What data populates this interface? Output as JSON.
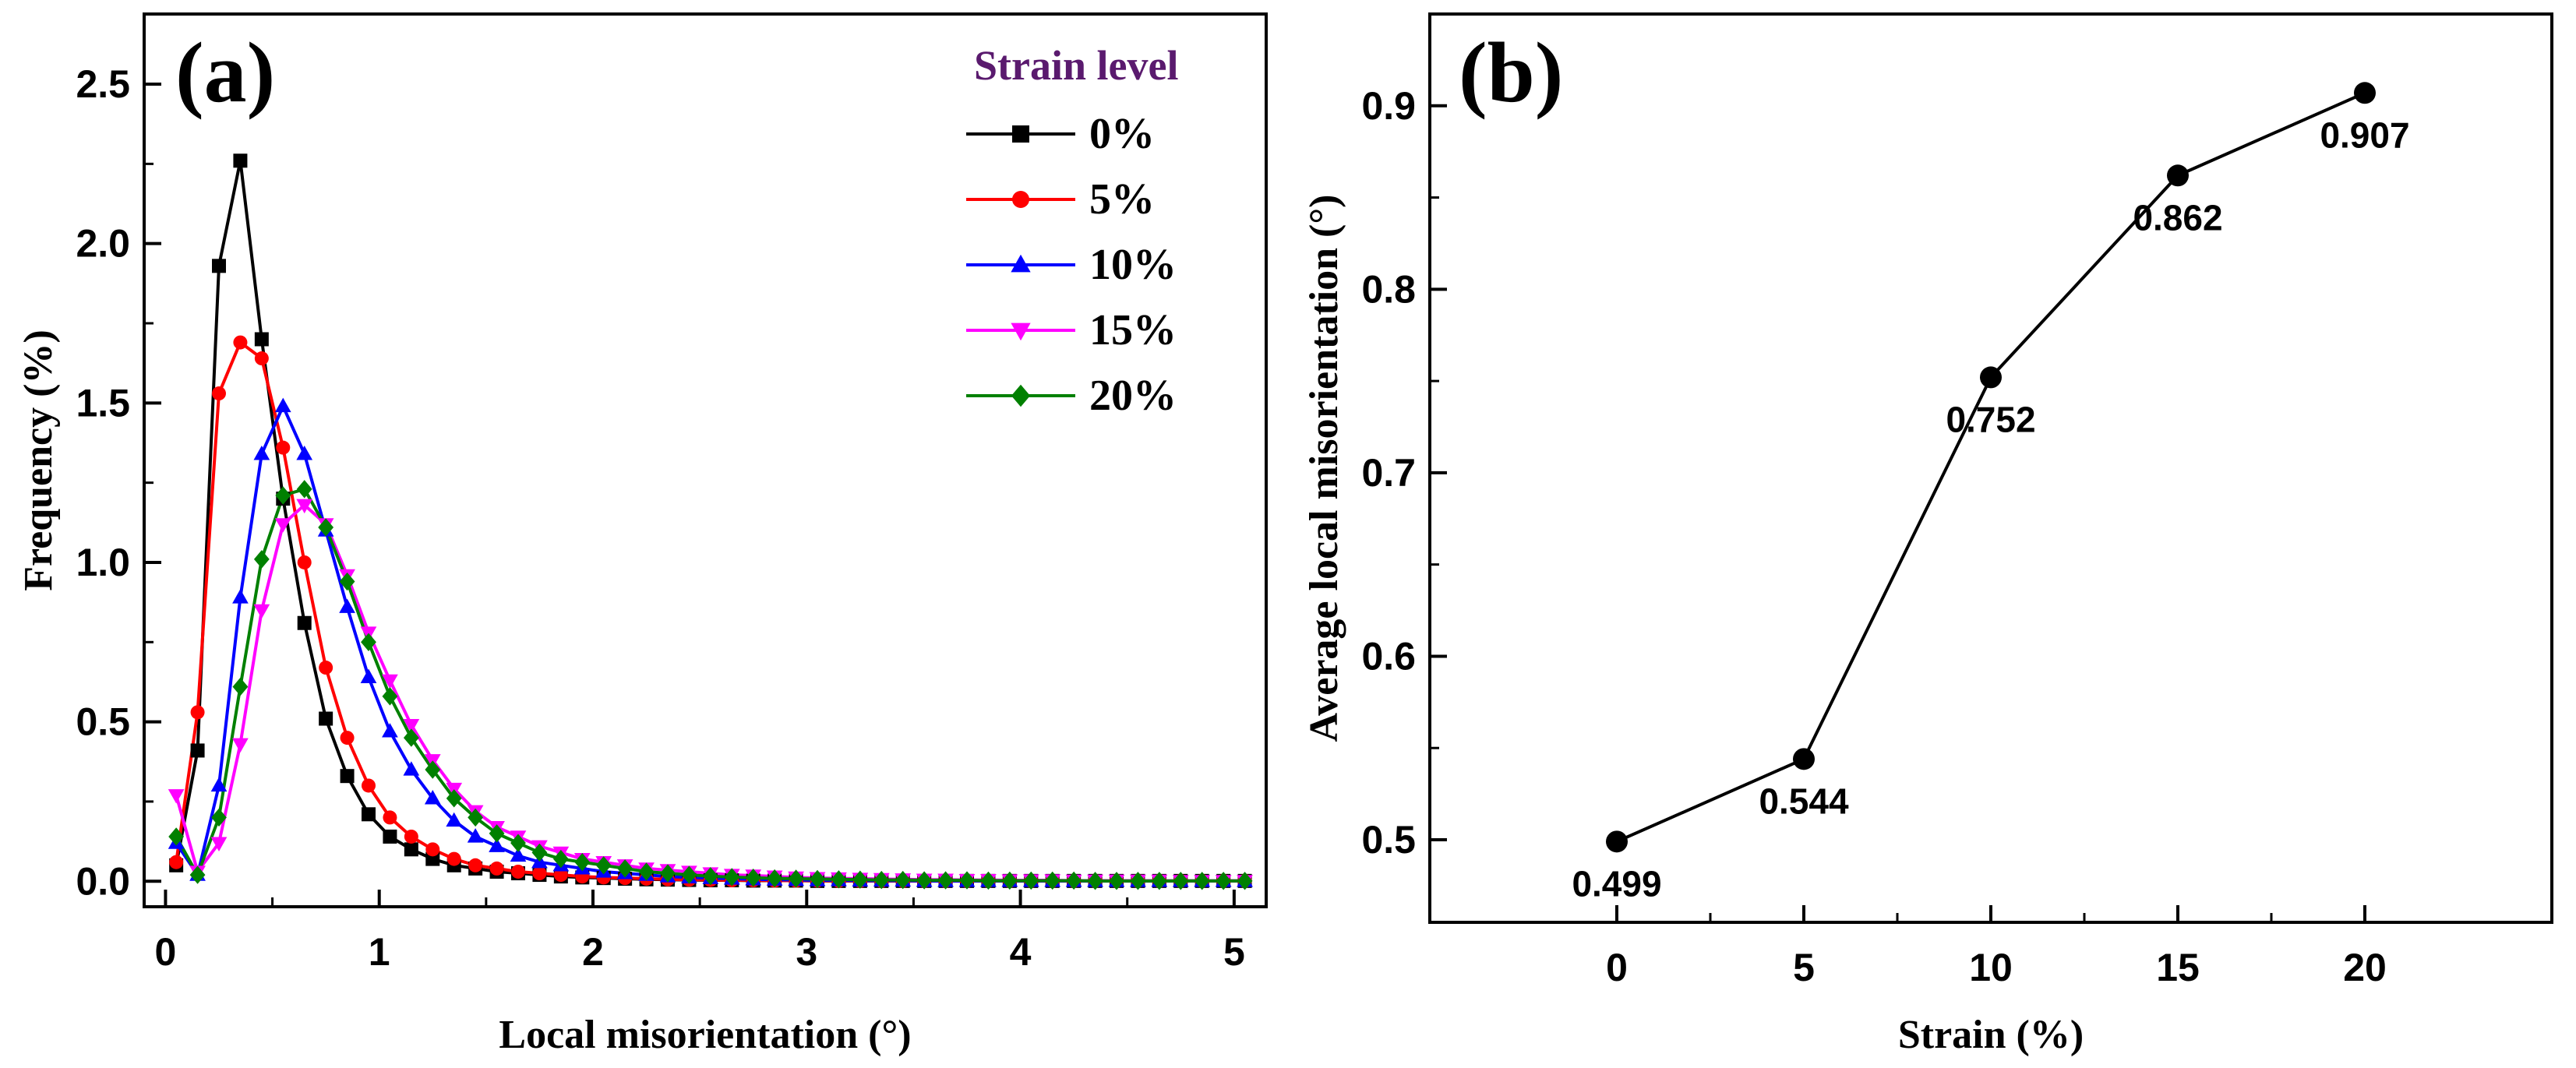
{
  "chart_data": [
    {
      "type": "line",
      "panel_label": "(a)",
      "xlabel": "Local misorientation (°)",
      "ylabel": "Frequency (%)",
      "xlim": [
        -0.1,
        5.15
      ],
      "ylim": [
        -0.08,
        2.72
      ],
      "xticks": [
        0,
        1,
        2,
        3,
        4,
        5
      ],
      "yticks": [
        0.0,
        0.5,
        1.0,
        1.5,
        2.0,
        2.5
      ],
      "ytick_labels": [
        "0.0",
        "0.5",
        "1.0",
        "1.5",
        "2.0",
        "2.5"
      ],
      "legend": {
        "title": "Strain level",
        "title_color": "#5a1a6e",
        "placement": "top-right"
      },
      "x": [
        0.05,
        0.15,
        0.25,
        0.35,
        0.45,
        0.55,
        0.65,
        0.75,
        0.85,
        0.95,
        1.05,
        1.15,
        1.25,
        1.35,
        1.45,
        1.55,
        1.65,
        1.75,
        1.85,
        1.95,
        2.05,
        2.15,
        2.25,
        2.35,
        2.45,
        2.55,
        2.65,
        2.75,
        2.85,
        2.95,
        3.05,
        3.15,
        3.25,
        3.35,
        3.45,
        3.55,
        3.65,
        3.75,
        3.85,
        3.95,
        4.05,
        4.15,
        4.25,
        4.35,
        4.45,
        4.55,
        4.65,
        4.75,
        4.85,
        4.95,
        5.05
      ],
      "series": [
        {
          "name": "0%",
          "color": "#000000",
          "marker": "square",
          "values": [
            0.05,
            0.41,
            1.93,
            2.26,
            1.7,
            1.2,
            0.81,
            0.51,
            0.33,
            0.21,
            0.14,
            0.1,
            0.07,
            0.05,
            0.04,
            0.03,
            0.025,
            0.02,
            0.015,
            0.012,
            0.01,
            0.008,
            0.006,
            0.005,
            0.004,
            0.003,
            0.003,
            0.002,
            0.002,
            0.002,
            0.001,
            0.001,
            0.001,
            0.001,
            0.001,
            0.001,
            0.001,
            0.001,
            0.001,
            0.001,
            0.001,
            0.001,
            0.001,
            0.001,
            0.001,
            0.001,
            0.001,
            0.001,
            0.001,
            0.001,
            0.001
          ]
        },
        {
          "name": "5%",
          "color": "#ff0000",
          "marker": "circle",
          "values": [
            0.06,
            0.53,
            1.53,
            1.69,
            1.64,
            1.36,
            1.0,
            0.67,
            0.45,
            0.3,
            0.2,
            0.14,
            0.1,
            0.07,
            0.05,
            0.04,
            0.03,
            0.025,
            0.02,
            0.015,
            0.012,
            0.01,
            0.008,
            0.006,
            0.005,
            0.004,
            0.003,
            0.003,
            0.002,
            0.002,
            0.002,
            0.001,
            0.001,
            0.001,
            0.001,
            0.001,
            0.001,
            0.001,
            0.001,
            0.001,
            0.001,
            0.001,
            0.001,
            0.001,
            0.001,
            0.001,
            0.001,
            0.001,
            0.001,
            0.001,
            0.001
          ]
        },
        {
          "name": "10%",
          "color": "#0000ff",
          "marker": "triangle-up",
          "values": [
            0.12,
            0.02,
            0.3,
            0.89,
            1.34,
            1.49,
            1.34,
            1.1,
            0.86,
            0.64,
            0.47,
            0.35,
            0.26,
            0.19,
            0.14,
            0.11,
            0.08,
            0.06,
            0.05,
            0.04,
            0.03,
            0.025,
            0.02,
            0.015,
            0.012,
            0.01,
            0.008,
            0.006,
            0.005,
            0.004,
            0.003,
            0.003,
            0.002,
            0.002,
            0.002,
            0.001,
            0.001,
            0.001,
            0.001,
            0.001,
            0.001,
            0.001,
            0.001,
            0.001,
            0.001,
            0.001,
            0.001,
            0.001,
            0.001,
            0.001,
            0.001
          ]
        },
        {
          "name": "15%",
          "color": "#ff00ff",
          "marker": "triangle-down",
          "values": [
            0.27,
            0.03,
            0.12,
            0.43,
            0.85,
            1.12,
            1.18,
            1.12,
            0.96,
            0.78,
            0.63,
            0.49,
            0.38,
            0.29,
            0.22,
            0.17,
            0.14,
            0.11,
            0.09,
            0.07,
            0.06,
            0.05,
            0.04,
            0.035,
            0.03,
            0.025,
            0.02,
            0.018,
            0.015,
            0.012,
            0.01,
            0.009,
            0.008,
            0.007,
            0.006,
            0.005,
            0.005,
            0.004,
            0.004,
            0.003,
            0.003,
            0.003,
            0.002,
            0.002,
            0.002,
            0.002,
            0.002,
            0.001,
            0.001,
            0.001,
            0.001
          ]
        },
        {
          "name": "20%",
          "color": "#008000",
          "marker": "diamond",
          "values": [
            0.14,
            0.02,
            0.2,
            0.61,
            1.01,
            1.21,
            1.23,
            1.11,
            0.94,
            0.75,
            0.58,
            0.45,
            0.35,
            0.26,
            0.2,
            0.15,
            0.12,
            0.09,
            0.07,
            0.06,
            0.05,
            0.04,
            0.03,
            0.025,
            0.02,
            0.016,
            0.013,
            0.011,
            0.009,
            0.008,
            0.007,
            0.006,
            0.005,
            0.004,
            0.004,
            0.003,
            0.003,
            0.003,
            0.002,
            0.002,
            0.002,
            0.002,
            0.002,
            0.001,
            0.001,
            0.001,
            0.001,
            0.001,
            0.001,
            0.001,
            0.001
          ]
        }
      ]
    },
    {
      "type": "line",
      "panel_label": "(b)",
      "xlabel": "Strain (%)",
      "ylabel": "Average local misorientation (°)",
      "xlim": [
        -5,
        25
      ],
      "ylim": [
        0.455,
        0.95
      ],
      "xticks": [
        0,
        5,
        10,
        15,
        20
      ],
      "yticks": [
        0.5,
        0.6,
        0.7,
        0.8,
        0.9
      ],
      "ytick_labels": [
        "0.5",
        "0.6",
        "0.7",
        "0.8",
        "0.9"
      ],
      "series": [
        {
          "color": "#000000",
          "marker": "circle",
          "x": [
            0,
            5,
            10,
            15,
            20
          ],
          "values": [
            0.499,
            0.544,
            0.752,
            0.862,
            0.907
          ],
          "labels": [
            "0.499",
            "0.544",
            "0.752",
            "0.862",
            "0.907"
          ]
        }
      ]
    }
  ]
}
